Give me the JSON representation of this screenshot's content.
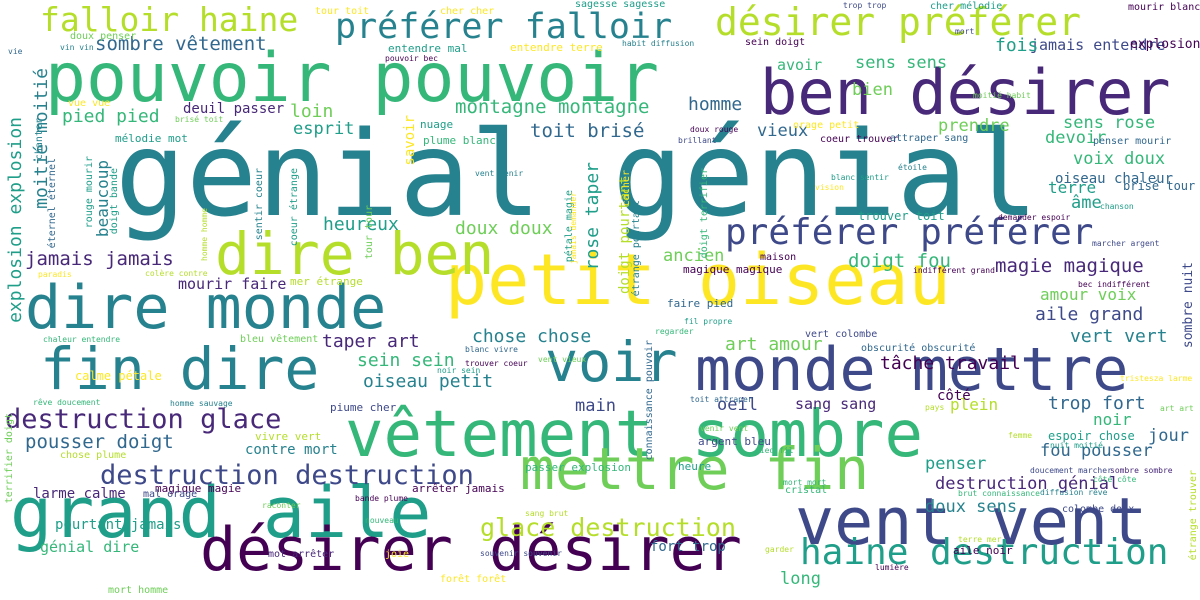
{
  "palette": {
    "c0": "#fde725",
    "c1": "#b5de2b",
    "c2": "#6ece58",
    "c3": "#35b779",
    "c4": "#1f9e89",
    "c5": "#26828e",
    "c6": "#31688e",
    "c7": "#3e4989",
    "c8": "#482878",
    "c9": "#440154"
  },
  "words": [
    "génial génial",
    "petit oiseau",
    "pouvoir pouvoir",
    "vêtement sombre",
    "grand aile",
    "désirer désirer",
    "vent vent",
    "mettre fin",
    "ben désirer",
    "dire monde",
    "monde mettre",
    "fin dire",
    "dire ben",
    "voir",
    "préférer préférer",
    "haine destruction",
    "désirer préférer",
    "préférer falloir",
    "falloir haine",
    "destruction destruction",
    "destruction glace",
    "glace destruction",
    "sombre vêtement",
    "montagne montagne",
    "toit brisé",
    "jamais jamais",
    "magie magique",
    "doigt fou",
    "pousser doigt",
    "heureux",
    "doux doux",
    "taper art",
    "oiseau petit",
    "sein sein",
    "chose chose",
    "art amour",
    "aile grand",
    "vert vert",
    "amour voix",
    "tâche travail",
    "jamais entendre",
    "fois",
    "sens sens",
    "bien",
    "avoir",
    "prendre",
    "devoir",
    "sens rose",
    "voix doux",
    "oiseau chaleur",
    "terre",
    "âme",
    "trouver toit",
    "homme",
    "vieux",
    "loin",
    "esprit",
    "pied pied",
    "deuil passer",
    "mélodie mot",
    "savoir",
    "beaucoup",
    "explosion explosion",
    "moitié moitié",
    "rose taper",
    "doigt pourtant",
    "ancien",
    "magique magique",
    "mourir faire",
    "mer étrange",
    "main",
    "oeil",
    "sang sang",
    "plein",
    "trop fort",
    "noir",
    "jour",
    "fou pousser",
    "penser",
    "destruction génial",
    "doux sens",
    "contre mort",
    "magique magie",
    "arrêter jamais",
    "larme calme",
    "pourtant jamais",
    "génial dire",
    "fort trop",
    "long",
    "aile noir",
    "calme pétale",
    "sombre nuit",
    "étrange trouver",
    "terrifier doigt",
    "côté",
    "brisé tour",
    "chanson",
    "marcher argent",
    "indifférent grand",
    "bec indifférent",
    "tristesza larme",
    "art art",
    "femme",
    "espoir chose",
    "nuit moitié",
    "côté côte",
    "sombre sombre",
    "rêve doucement",
    "homme sauvage",
    "pays",
    "explosion tristeza",
    "sein doigt",
    "mort",
    "vie",
    "vin vin",
    "doux penser",
    "tour toit",
    "cher cher",
    "sagesse sagesse",
    "trop trop",
    "cher mélodie",
    "mourir blanc",
    "habit diffusion",
    "entendre mal",
    "entendre terre",
    "pouvoir bec",
    "moitié habit",
    "vue vue",
    "brisé toit",
    "nuage",
    "plume blanc",
    "orage petit",
    "coeur trouver",
    "attraper sang",
    "penser mourir",
    "doux rouge",
    "brillant",
    "vent venir",
    "chanter",
    "éternel éternel",
    "rouge mourir",
    "doigt bande",
    "sentir coeur",
    "coeur étrange",
    "tour tour",
    "pétale magie",
    "jamais demander",
    "cacher",
    "étrange pourtant",
    "doigt terrifier",
    "blanc sentir",
    "vision",
    "étoile",
    "demander espoir",
    "homme homme",
    "paradis",
    "colère contre",
    "maison",
    "faire pied",
    "fil propre",
    "regarder",
    "vert colombe",
    "obscurité obscurité",
    "chaleur entendre",
    "bleu vêtement",
    "blanc vivre",
    "noir sein",
    "trouver coeur",
    "vent vieux",
    "connaissance pouvoir",
    "toit attraper",
    "venir vent",
    "argent bleu",
    "pied fil",
    "mort mort",
    "heure",
    "passer explosion",
    "chose plume",
    "vivre vert",
    "piume cher",
    "mal orage",
    "bande plume",
    "raconter",
    "nouveau",
    "cristal",
    "brut connaissance",
    "diffusion rêve",
    "doucement marcher",
    "colombe doux",
    "terre mer",
    "joie",
    "mot arrêter",
    "forêt forêt",
    "sang brut",
    "souvenir souvenir",
    "garder",
    "lumière",
    "mort homme",
    "propre doux"
  ]
}
